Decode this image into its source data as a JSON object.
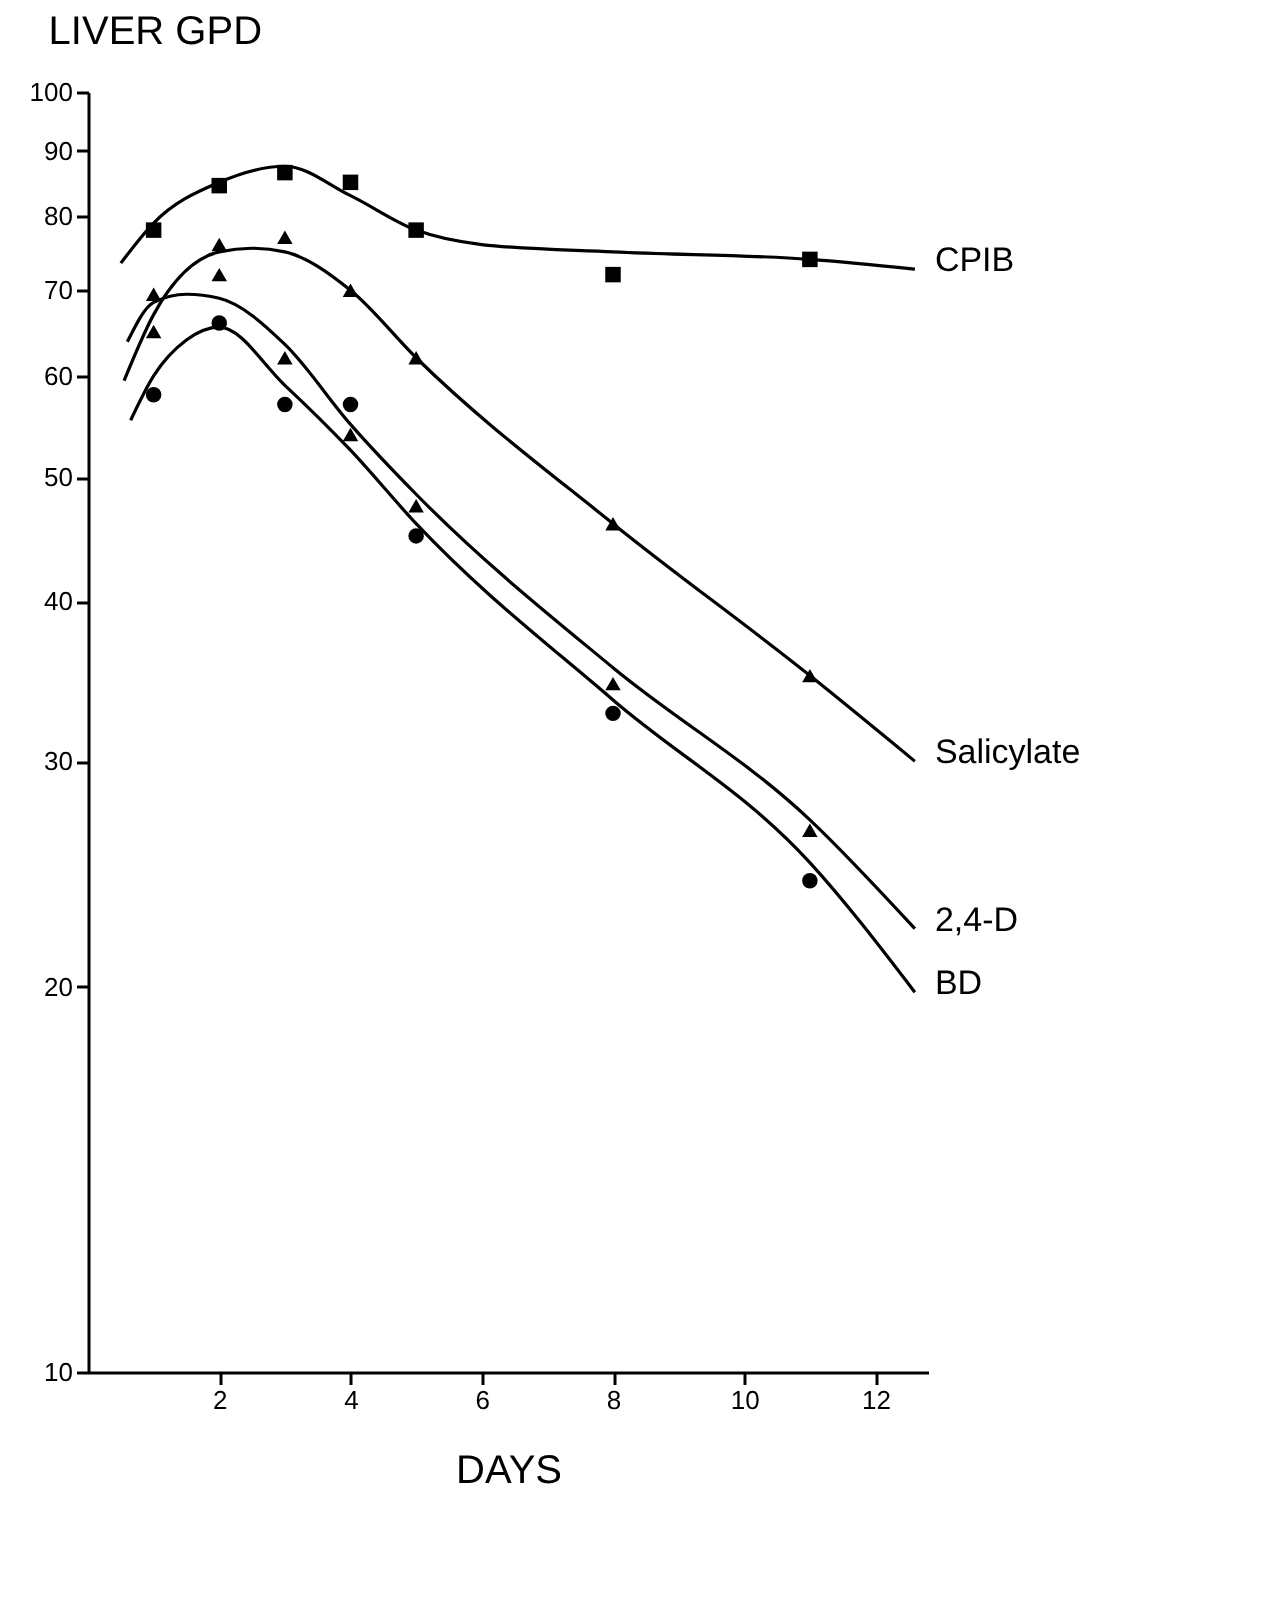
{
  "chart_data": {
    "type": "scatter",
    "title": "LIVER   GPD",
    "xlabel": "DAYS",
    "xlim": [
      0,
      12.8
    ],
    "xticks": [
      2,
      4,
      6,
      8,
      10,
      12
    ],
    "ylim": [
      10,
      100
    ],
    "yticks": [
      10,
      20,
      30,
      40,
      50,
      60,
      70,
      80,
      90,
      100
    ],
    "log": "y",
    "grid": false,
    "series": [
      {
        "marker": "square",
        "color": "#000000",
        "x": [
          1,
          2,
          3,
          4,
          5,
          8,
          11
        ],
        "values": [
          78,
          84.5,
          86.5,
          85,
          78,
          72,
          74
        ]
      },
      {
        "marker": "triangle",
        "color": "#000000",
        "x": [
          1,
          2,
          3,
          4,
          5,
          8,
          11
        ],
        "values": [
          65,
          76,
          77,
          70,
          62,
          46,
          35
        ]
      },
      {
        "marker": "triangle",
        "color": "#000000",
        "x": [
          1,
          2,
          3,
          4,
          5,
          8,
          11
        ],
        "values": [
          69.5,
          72,
          62,
          54,
          47.5,
          34.5,
          26.5
        ]
      },
      {
        "marker": "circle",
        "color": "#000000",
        "x": [
          1,
          2,
          3,
          4,
          5,
          8,
          11
        ],
        "values": [
          58,
          66,
          57,
          57,
          45,
          32.7,
          24.2
        ]
      },
      {
        "type": "line",
        "name": "CPIB",
        "color": "#000000",
        "marker": "none",
        "x": [
          0.5,
          1,
          2,
          3,
          4,
          5,
          6,
          8,
          11,
          12.6
        ],
        "values": [
          73.5,
          79,
          85,
          87.5,
          83,
          78,
          76,
          75,
          74,
          72.7
        ]
      },
      {
        "type": "line",
        "name": "Salicylate",
        "color": "#000000",
        "marker": "none",
        "x": [
          0.55,
          1,
          2,
          2.5,
          3,
          4,
          5,
          8,
          11,
          12.6
        ],
        "values": [
          59.5,
          67,
          75,
          75.5,
          75,
          70,
          62,
          46,
          35,
          30
        ]
      },
      {
        "type": "line",
        "name": "2,4-D",
        "color": "#000000",
        "marker": "none",
        "x": [
          0.6,
          1,
          1.5,
          2,
          3,
          4,
          5,
          8,
          11,
          12.6
        ],
        "values": [
          63.8,
          68.5,
          69.5,
          69,
          63.5,
          55,
          48.5,
          35.5,
          27,
          22.2
        ]
      },
      {
        "type": "line",
        "name": "BD",
        "color": "#000000",
        "marker": "none",
        "x": [
          0.65,
          1,
          1.5,
          2,
          3,
          4,
          5,
          8,
          11,
          12.6
        ],
        "values": [
          55.4,
          60,
          64,
          65.5,
          59,
          52.5,
          46,
          33.5,
          25,
          19.8
        ]
      }
    ]
  }
}
